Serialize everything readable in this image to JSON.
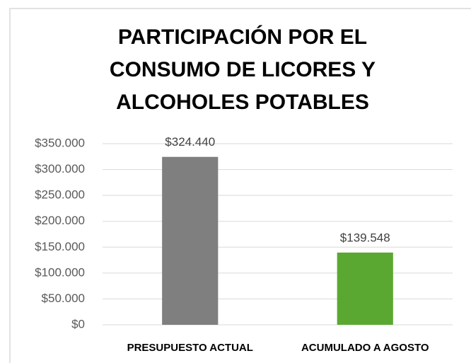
{
  "chart_data": {
    "type": "bar",
    "title": "PARTICIPACIÓN POR EL CONSUMO DE LICORES Y ALCOHOLES POTABLES",
    "categories": [
      "PRESUPUESTO ACTUAL",
      "ACUMULADO A AGOSTO"
    ],
    "values": [
      324440,
      139548
    ],
    "value_labels": [
      "$324.440",
      "$139.548"
    ],
    "colors": [
      "#7f7f7f",
      "#5aa832"
    ],
    "ylim": [
      0,
      350000
    ],
    "yticks": [
      {
        "value": 0,
        "label": "$0"
      },
      {
        "value": 50000,
        "label": "$50.000"
      },
      {
        "value": 100000,
        "label": "$100.000"
      },
      {
        "value": 150000,
        "label": "$150.000"
      },
      {
        "value": 200000,
        "label": "$200.000"
      },
      {
        "value": 250000,
        "label": "$250.000"
      },
      {
        "value": 300000,
        "label": "$300.000"
      },
      {
        "value": 350000,
        "label": "$350.000"
      }
    ],
    "grid": true
  }
}
